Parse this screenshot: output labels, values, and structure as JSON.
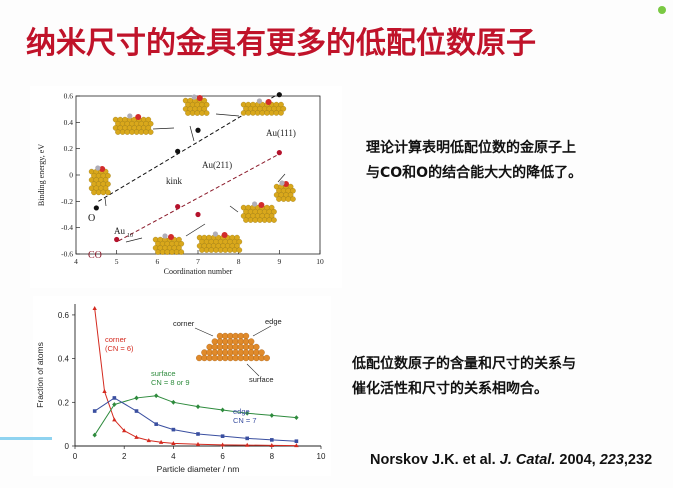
{
  "slide": {
    "title": "纳米尺寸的金具有更多的低配位数原子",
    "note1": [
      "理论计算表明低配位数的金原子上",
      "与CO和O的结合能大大的降低了。"
    ],
    "note2": [
      "低配位数原子的含量和尺寸的关系与",
      "催化活性和尺寸的关系相吻合。"
    ],
    "reference": {
      "authors": "Norskov J.K. et al. ",
      "journal": "J. Catal.",
      "year": " 2004, ",
      "volume": "223",
      "pages": ",232"
    },
    "accent_color": "#c0132a"
  },
  "chart_data": [
    {
      "type": "scatter",
      "xlabel": "Coordination number",
      "ylabel": "Binding energy, eV",
      "xlim": [
        4,
        10
      ],
      "ylim": [
        -0.6,
        0.6
      ],
      "xticks": [
        "4",
        "5",
        "6",
        "7",
        "8",
        "9",
        "10"
      ],
      "yticks": [
        "0.6",
        "0.4",
        "0.2",
        "0",
        "-0.2",
        "-0.4",
        "-0.6"
      ],
      "series": [
        {
          "name": "O",
          "color": "#111111",
          "x": [
            4.5,
            6.5,
            7,
            9
          ],
          "y": [
            -0.25,
            0.18,
            0.34,
            0.61
          ],
          "labels": [
            "O",
            "",
            "",
            "Au(111)"
          ]
        },
        {
          "name": "CO",
          "color": "#b5122c",
          "x": [
            5,
            6.5,
            7,
            9
          ],
          "y": [
            -0.49,
            -0.24,
            -0.3,
            0.17
          ],
          "labels": [
            "Au10",
            "",
            "",
            ""
          ]
        }
      ],
      "annotations": [
        "Au(111)",
        "Au(211)",
        "kink",
        "Au",
        "10",
        "O",
        "CO"
      ],
      "grid": false
    },
    {
      "type": "line",
      "xlabel": "Particle diameter / nm",
      "ylabel": "Fraction of atoms",
      "xlim": [
        0,
        10
      ],
      "ylim": [
        0,
        0.65
      ],
      "xticks": [
        "0",
        "2",
        "4",
        "6",
        "8",
        "10"
      ],
      "yticks": [
        "0",
        "0.2",
        "0.4",
        "0.6"
      ],
      "series": [
        {
          "name": "corner\n(CN = 6)",
          "color": "#d42a1f",
          "x": [
            0.8,
            1.2,
            1.6,
            2.0,
            2.5,
            3.0,
            3.5,
            4.0,
            5.0,
            6.0,
            7.0,
            8.0,
            9.0
          ],
          "y": [
            0.63,
            0.25,
            0.12,
            0.07,
            0.04,
            0.025,
            0.017,
            0.012,
            0.008,
            0.005,
            0.004,
            0.003,
            0.002
          ]
        },
        {
          "name": "surface\nCN = 8 or 9",
          "color": "#2e8b3d",
          "x": [
            0.8,
            1.6,
            2.5,
            3.3,
            4.0,
            5.0,
            6.0,
            7.0,
            8.0,
            9.0
          ],
          "y": [
            0.05,
            0.19,
            0.22,
            0.23,
            0.2,
            0.18,
            0.165,
            0.15,
            0.14,
            0.13
          ]
        },
        {
          "name": "edge\nCN = 7",
          "color": "#3a4fa0",
          "x": [
            0.8,
            1.6,
            2.5,
            3.3,
            4.0,
            5.0,
            6.0,
            7.0,
            8.0,
            9.0
          ],
          "y": [
            0.16,
            0.22,
            0.16,
            0.1,
            0.075,
            0.055,
            0.045,
            0.035,
            0.028,
            0.022
          ]
        }
      ],
      "inset_labels": [
        "corner",
        "edge",
        "surface"
      ],
      "grid": false
    }
  ]
}
